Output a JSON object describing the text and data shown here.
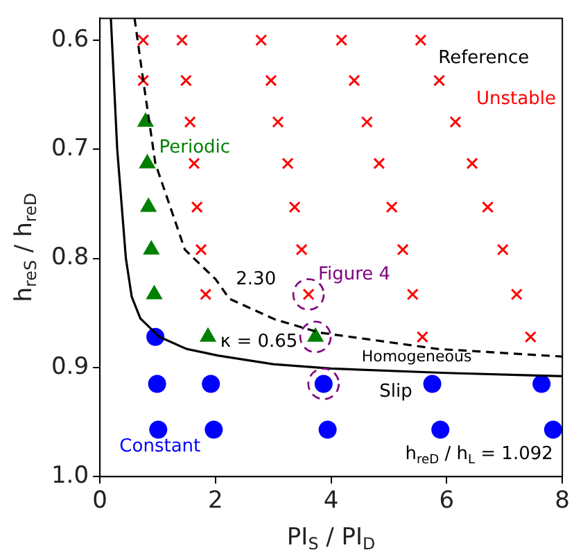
{
  "chart_data": {
    "type": "scatter",
    "xlabel": "PI$_{S}$ / PI$_{D}$",
    "ylabel": "h$_{reS}$ / h$_{reD}$",
    "xlim": [
      0,
      8
    ],
    "xticks": [
      0,
      2,
      4,
      6,
      8
    ],
    "ylim": [
      1.0,
      0.58
    ],
    "yticks": [
      0.6,
      0.7,
      0.8,
      0.9,
      {
        "value": 1.0,
        "label": "1.0"
      }
    ],
    "grid": false,
    "legend": false,
    "series": [
      {
        "type": "line",
        "name": "κ = 0.65",
        "color": "#000000",
        "line_style": "solid",
        "marker": "none",
        "x": [
          0.19,
          0.3,
          0.45,
          0.55,
          0.7,
          1.03,
          1.5,
          2.04,
          3,
          4,
          6,
          8
        ],
        "values": [
          0.58,
          0.7,
          0.8,
          0.835,
          0.855,
          0.872,
          0.883,
          0.889,
          0.897,
          0.901,
          0.905,
          0.908
        ]
      },
      {
        "type": "line",
        "name": "2.30",
        "color": "#000000",
        "line_style": "dashed",
        "marker": "none",
        "x": [
          0.6,
          0.75,
          0.96,
          1.47,
          2.0,
          2.24,
          3.03,
          3.8,
          5.84,
          8
        ],
        "values": [
          0.58,
          0.637,
          0.713,
          0.792,
          0.819,
          0.837,
          0.856,
          0.868,
          0.883,
          0.89
        ]
      },
      {
        "name": "Unstable",
        "color": "#ff0000",
        "marker": "cross",
        "x": [
          0.75,
          1.42,
          2.79,
          4.18,
          5.55,
          0.75,
          1.49,
          2.96,
          4.4,
          5.87,
          1.56,
          3.08,
          4.62,
          6.15,
          1.63,
          3.25,
          4.83,
          6.44,
          1.68,
          3.37,
          5.05,
          6.71,
          1.75,
          3.49,
          5.24,
          6.97,
          1.83,
          3.61,
          5.41,
          7.21,
          5.58,
          7.45
        ],
        "values": [
          0.6,
          0.6,
          0.6,
          0.6,
          0.6,
          0.637,
          0.637,
          0.637,
          0.637,
          0.637,
          0.675,
          0.675,
          0.675,
          0.675,
          0.713,
          0.713,
          0.713,
          0.713,
          0.753,
          0.753,
          0.753,
          0.753,
          0.792,
          0.792,
          0.792,
          0.792,
          0.833,
          0.833,
          0.833,
          0.833,
          0.872,
          0.872
        ]
      },
      {
        "name": "Periodic",
        "color": "#008000",
        "marker": "triangle",
        "x": [
          0.79,
          0.82,
          0.84,
          0.89,
          0.94,
          1.87,
          3.73
        ],
        "values": [
          0.675,
          0.713,
          0.753,
          0.792,
          0.833,
          0.872,
          0.872
        ]
      },
      {
        "name": "Constant",
        "color": "#0000ff",
        "marker": "circle",
        "x": [
          0.96,
          0.99,
          1.92,
          3.87,
          5.75,
          7.64,
          1.01,
          1.97,
          3.94,
          5.89,
          7.84
        ],
        "values": [
          0.872,
          0.915,
          0.915,
          0.915,
          0.915,
          0.915,
          0.957,
          0.957,
          0.957,
          0.957,
          0.957
        ]
      },
      {
        "name": "Figure 4",
        "color": "#800080",
        "marker": "circle",
        "line_style": "dashed",
        "x": [
          3.61,
          3.73,
          3.87
        ],
        "values": [
          0.833,
          0.872,
          0.915
        ]
      }
    ],
    "annotations": [
      "Reference",
      "Homogeneous",
      "Slip",
      "h$_{reD}$ / h$_{L}$ = 1.092"
    ]
  }
}
